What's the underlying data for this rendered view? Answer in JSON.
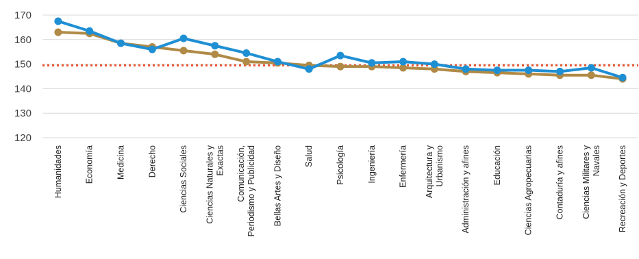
{
  "chart_data": {
    "type": "line",
    "title": "",
    "xlabel": "",
    "ylabel": "",
    "ylim": [
      120,
      170
    ],
    "yticks": [
      120,
      130,
      140,
      150,
      160,
      170
    ],
    "grid": true,
    "categories": [
      [
        "Humanidades"
      ],
      [
        "Economía"
      ],
      [
        "Medicina"
      ],
      [
        "Derecho"
      ],
      [
        "Ciencias Sociales"
      ],
      [
        "Ciencias Naturales y",
        "Exactas"
      ],
      [
        "Comunicación,",
        "Periodismo y Publicidad"
      ],
      [
        "Bellas Artes y Diseño"
      ],
      [
        "Salud"
      ],
      [
        "Psicología"
      ],
      [
        "Ingeniería"
      ],
      [
        "Enfermería"
      ],
      [
        "Arquitectura y",
        "Urbanismo"
      ],
      [
        "Administración y afines"
      ],
      [
        "Educación"
      ],
      [
        "Ciencias Agropecuarias"
      ],
      [
        "Contaduría y afines"
      ],
      [
        "Ciencias Militares y",
        "Navales"
      ],
      [
        "Recreación y Deportes"
      ]
    ],
    "series": [
      {
        "color": "#1f8fd4",
        "values": [
          167.5,
          163.5,
          158.5,
          156.0,
          160.5,
          157.5,
          154.5,
          151.0,
          148.0,
          153.5,
          150.5,
          151.0,
          150.0,
          148.0,
          147.5,
          147.5,
          147.0,
          148.5,
          144.5
        ]
      },
      {
        "color": "#b08a46",
        "values": [
          163.0,
          162.5,
          158.5,
          157.0,
          155.5,
          154.0,
          151.0,
          150.5,
          149.5,
          149.0,
          149.0,
          148.5,
          148.0,
          147.0,
          146.5,
          146.0,
          145.5,
          145.5,
          144.0
        ]
      }
    ],
    "reference_line": {
      "value": 149.5,
      "color": "#e8512a",
      "style": "dotted"
    }
  }
}
